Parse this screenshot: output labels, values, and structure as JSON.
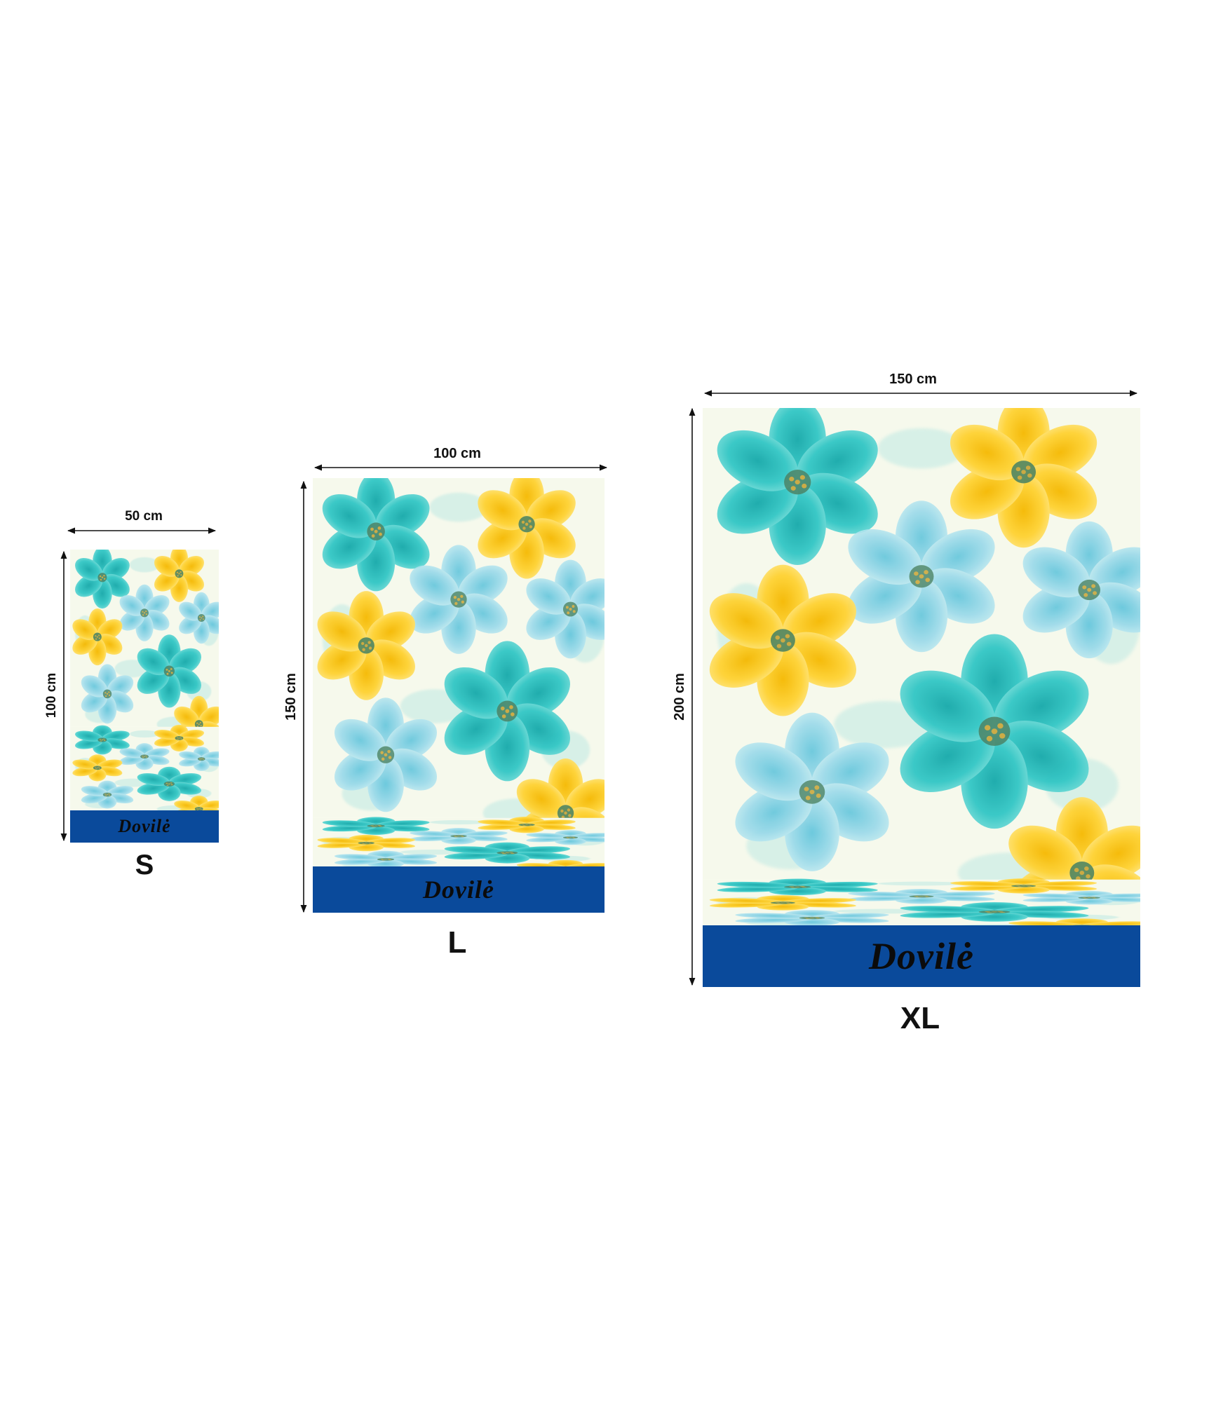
{
  "brand": {
    "name": "Dovilė",
    "band_color": "#0a4a9b",
    "text_color": "#0b0b0b"
  },
  "palette": {
    "background": "#f6f9ec",
    "teal": "#1fbfc0",
    "light_blue": "#8dd6e6",
    "yellow": "#ffd02a",
    "center": "#3a7a5e"
  },
  "products": [
    {
      "size": "S",
      "width_label": "50 cm",
      "height_label": "100 cm",
      "width_cm": 50,
      "height_cm": 100
    },
    {
      "size": "L",
      "width_label": "100 cm",
      "height_label": "150 cm",
      "width_cm": 100,
      "height_cm": 150
    },
    {
      "size": "XL",
      "width_label": "150 cm",
      "height_label": "200 cm",
      "width_cm": 150,
      "height_cm": 200
    }
  ]
}
